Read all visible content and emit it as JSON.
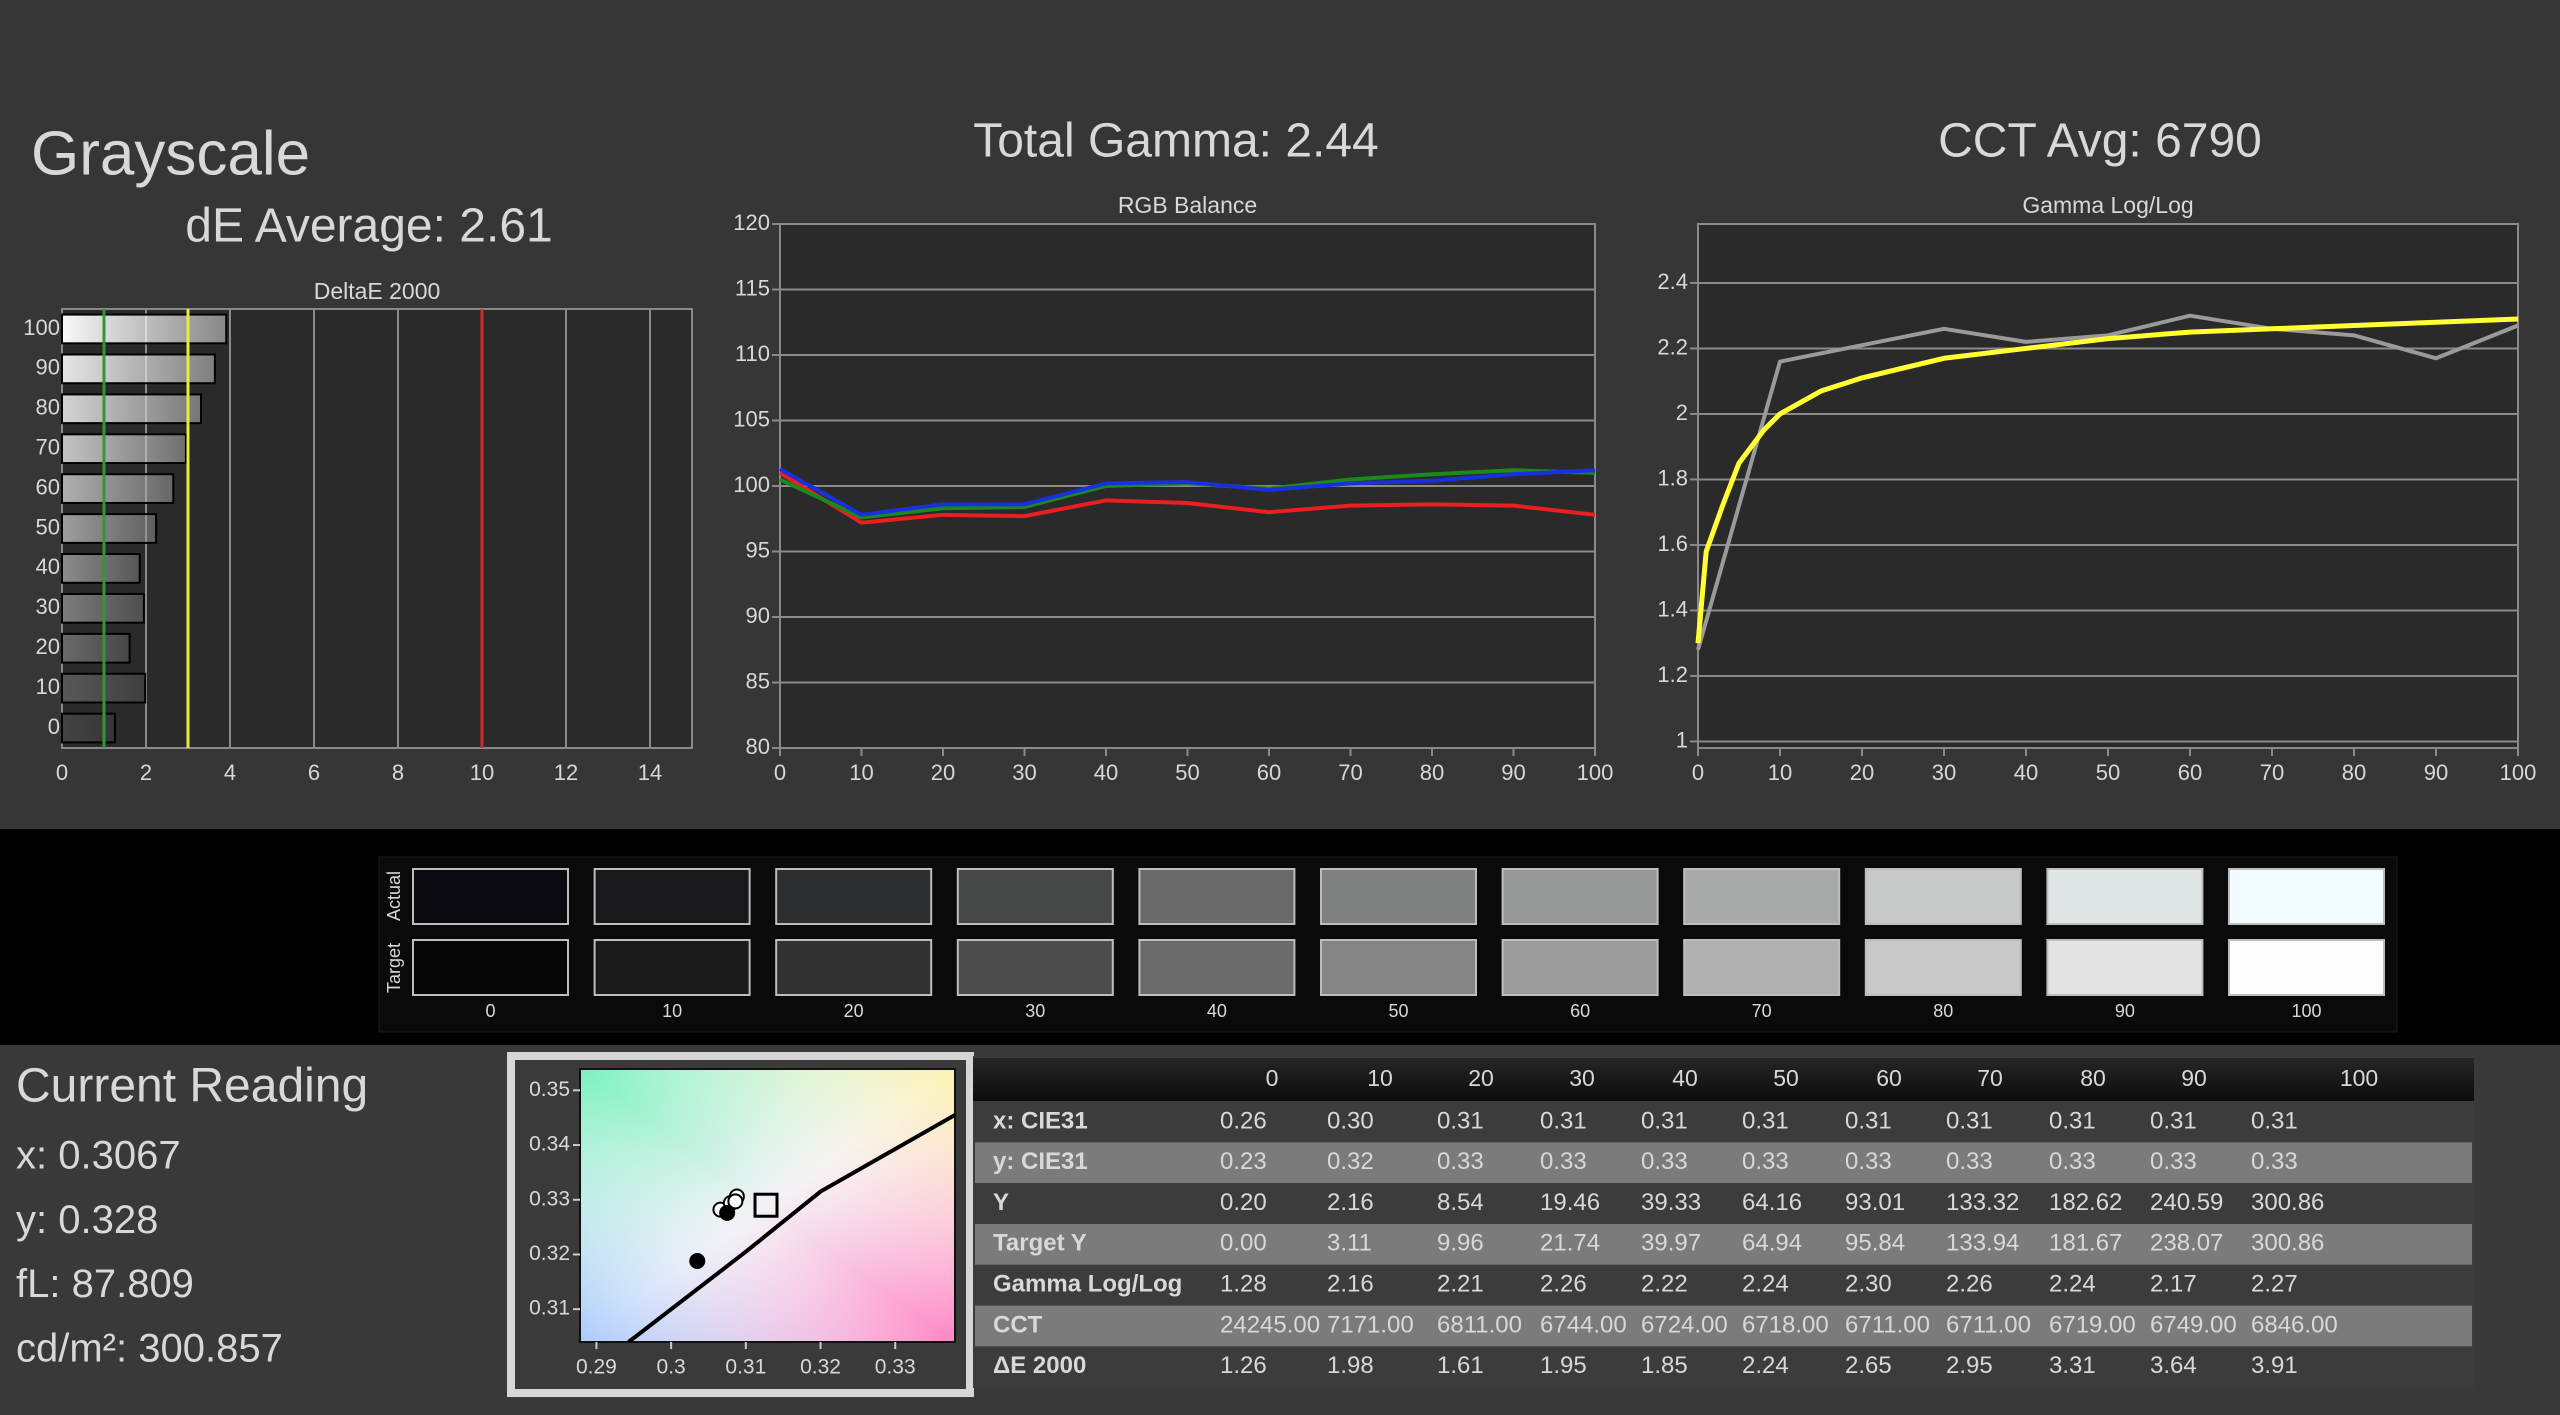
{
  "header": {
    "title": "Grayscale",
    "de_average": "dE Average: 2.61",
    "total_gamma": "Total Gamma: 2.44",
    "cct_avg": "CCT Avg: 6790"
  },
  "chart_data": [
    {
      "type": "bar",
      "orientation": "horizontal",
      "title": "DeltaE 2000",
      "categories": [
        "100",
        "90",
        "80",
        "70",
        "60",
        "50",
        "40",
        "30",
        "20",
        "10",
        "0"
      ],
      "values": [
        3.91,
        3.64,
        3.31,
        2.95,
        2.65,
        2.24,
        1.85,
        1.95,
        1.61,
        1.98,
        1.26
      ],
      "colors": [
        "#f8f8f8",
        "#e6e6e6",
        "#d4d4d4",
        "#c4c4c4",
        "#b0b0b0",
        "#9e9e9e",
        "#8c8c8c",
        "#7c7c7c",
        "#6a6a6a",
        "#585858",
        "#444444"
      ],
      "xlim": [
        0,
        15
      ],
      "xticks": [
        0,
        2,
        4,
        6,
        8,
        10,
        12,
        14
      ],
      "grid": true,
      "reference_lines": [
        {
          "value": 1,
          "color": "#2e9a2e"
        },
        {
          "value": 3,
          "color": "#e8e84a"
        },
        {
          "value": 10,
          "color": "#d42a2a"
        }
      ]
    },
    {
      "type": "line",
      "title": "RGB Balance",
      "x": [
        0,
        10,
        20,
        30,
        40,
        50,
        60,
        70,
        80,
        90,
        100
      ],
      "series": [
        {
          "color": "#e8201f",
          "values": [
            101.0,
            97.2,
            97.8,
            97.7,
            98.9,
            98.7,
            98.0,
            98.5,
            98.6,
            98.5,
            97.8
          ]
        },
        {
          "color": "#1a8a1a",
          "values": [
            100.5,
            97.6,
            98.3,
            98.4,
            100.0,
            100.2,
            99.8,
            100.5,
            100.9,
            101.2,
            101.0
          ]
        },
        {
          "color": "#1a30e0",
          "values": [
            101.3,
            97.8,
            98.6,
            98.6,
            100.2,
            100.3,
            99.7,
            100.2,
            100.4,
            100.9,
            101.2
          ]
        }
      ],
      "xlim": [
        0,
        100
      ],
      "ylim": [
        80,
        120
      ],
      "xticks": [
        0,
        10,
        20,
        30,
        40,
        50,
        60,
        70,
        80,
        90,
        100
      ],
      "yticks": [
        80,
        85,
        90,
        95,
        100,
        105,
        110,
        115,
        120
      ],
      "grid": true
    },
    {
      "type": "line",
      "title": "Gamma Log/Log",
      "series": [
        {
          "color": "#9a9a9a",
          "x": [
            0,
            10,
            20,
            30,
            40,
            50,
            60,
            70,
            80,
            90,
            100
          ],
          "values": [
            1.28,
            2.16,
            2.21,
            2.26,
            2.22,
            2.24,
            2.3,
            2.26,
            2.24,
            2.17,
            2.27
          ]
        },
        {
          "color": "#ffff33",
          "x": [
            0,
            1,
            3,
            5,
            8,
            10,
            15,
            20,
            30,
            40,
            50,
            60,
            70,
            80,
            90,
            100
          ],
          "values": [
            1.3,
            1.58,
            1.72,
            1.85,
            1.95,
            2.0,
            2.07,
            2.11,
            2.17,
            2.2,
            2.23,
            2.25,
            2.26,
            2.27,
            2.28,
            2.29
          ]
        }
      ],
      "xlim": [
        0,
        100
      ],
      "ylim": [
        0.98,
        2.58
      ],
      "xticks": [
        0,
        10,
        20,
        30,
        40,
        50,
        60,
        70,
        80,
        90,
        100
      ],
      "yticks": [
        1,
        1.2,
        1.4,
        1.6,
        1.8,
        2,
        2.2,
        2.4
      ],
      "grid": true
    },
    {
      "type": "scatter",
      "series": [
        {
          "color": "#ffffff",
          "x": [
            0.3066,
            0.308,
            0.3088,
            0.3086
          ],
          "values": [
            0.3282,
            0.3294,
            0.3306,
            0.3297
          ]
        },
        {
          "color": "#000000",
          "x": [
            0.3075,
            0.3035
          ],
          "values": [
            0.3276,
            0.3188
          ]
        }
      ],
      "target": {
        "x": 0.3127,
        "y": 0.329
      },
      "locus": {
        "x": [
          0.2943,
          0.31,
          0.32,
          0.338
        ],
        "values": [
          0.304,
          0.3205,
          0.3315,
          0.3455
        ]
      },
      "xlim": [
        0.2878,
        0.338
      ],
      "ylim": [
        0.304,
        0.3539
      ],
      "xticks": [
        0.29,
        0.3,
        0.31,
        0.32,
        0.33
      ],
      "yticks": [
        0.31,
        0.32,
        0.33,
        0.34,
        0.35
      ]
    }
  ],
  "swatches": {
    "row_labels": [
      "Actual",
      "Target"
    ],
    "labels": [
      "0",
      "10",
      "20",
      "30",
      "40",
      "50",
      "60",
      "70",
      "80",
      "90",
      "100"
    ],
    "actual": [
      "#0b0a10",
      "#19191b",
      "#2d2e30",
      "#474848",
      "#6a6a6a",
      "#7f8080",
      "#979898",
      "#a8aaaa",
      "#c7c9c9",
      "#e0e5e5",
      "#f2fbff"
    ],
    "target": [
      "#050505",
      "#1b1b1b",
      "#313131",
      "#4c4c4c",
      "#6b6b6b",
      "#858585",
      "#9b9b9b",
      "#b0b0b0",
      "#c8c8c8",
      "#e3e3e3",
      "#fefefe"
    ]
  },
  "current_reading": {
    "title": "Current Reading",
    "lines": [
      "x: 0.3067",
      "y: 0.328",
      "fL: 87.809",
      "cd/m²: 300.857"
    ]
  },
  "table": {
    "columns": [
      "0",
      "10",
      "20",
      "30",
      "40",
      "50",
      "60",
      "70",
      "80",
      "90",
      "100"
    ],
    "rows": [
      {
        "label": "x: CIE31",
        "cells": [
          "0.26",
          "0.30",
          "0.31",
          "0.31",
          "0.31",
          "0.31",
          "0.31",
          "0.31",
          "0.31",
          "0.31",
          "0.31"
        ]
      },
      {
        "label": "y: CIE31",
        "cells": [
          "0.23",
          "0.32",
          "0.33",
          "0.33",
          "0.33",
          "0.33",
          "0.33",
          "0.33",
          "0.33",
          "0.33",
          "0.33"
        ]
      },
      {
        "label": "Y",
        "cells": [
          "0.20",
          "2.16",
          "8.54",
          "19.46",
          "39.33",
          "64.16",
          "93.01",
          "133.32",
          "182.62",
          "240.59",
          "300.86"
        ]
      },
      {
        "label": "Target Y",
        "cells": [
          "0.00",
          "3.11",
          "9.96",
          "21.74",
          "39.97",
          "64.94",
          "95.84",
          "133.94",
          "181.67",
          "238.07",
          "300.86"
        ]
      },
      {
        "label": "Gamma Log/Log",
        "cells": [
          "1.28",
          "2.16",
          "2.21",
          "2.26",
          "2.22",
          "2.24",
          "2.30",
          "2.26",
          "2.24",
          "2.17",
          "2.27"
        ]
      },
      {
        "label": "CCT",
        "cells": [
          "24245.00",
          "7171.00",
          "6811.00",
          "6744.00",
          "6724.00",
          "6718.00",
          "6711.00",
          "6711.00",
          "6719.00",
          "6749.00",
          "6846.00"
        ]
      },
      {
        "label": "ΔE 2000",
        "cells": [
          "1.26",
          "1.98",
          "1.61",
          "1.95",
          "1.85",
          "2.24",
          "2.65",
          "2.95",
          "3.31",
          "3.64",
          "3.91"
        ]
      }
    ]
  }
}
